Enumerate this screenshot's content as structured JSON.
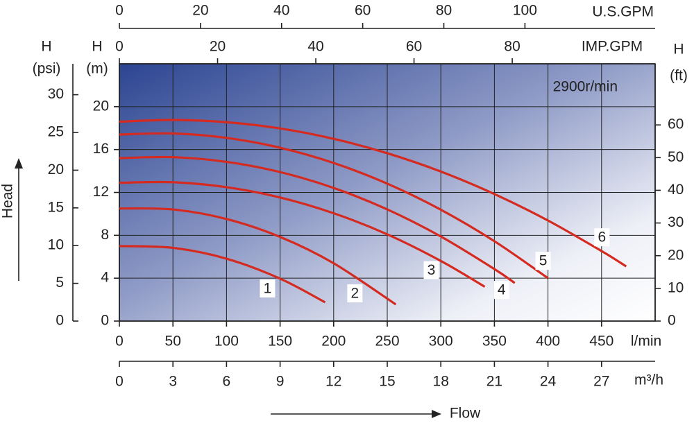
{
  "chart_data": {
    "type": "line",
    "annotation": "2900r/min",
    "x_axis_title": "Flow",
    "y_axis_title": "Head",
    "xlim": [
      0,
      500
    ],
    "xticks": [
      0,
      50,
      100,
      150,
      200,
      250,
      300,
      350,
      400,
      450
    ],
    "x_unit": "l/min",
    "x2": {
      "unit": "m³/h",
      "lim": [
        0,
        30
      ],
      "ticks": [
        0,
        3,
        6,
        9,
        12,
        15,
        18,
        21,
        24,
        27
      ]
    },
    "x_top": {
      "unit": "U.S.GPM",
      "lim": [
        0,
        132.1
      ],
      "ticks": [
        0,
        20,
        40,
        60,
        80,
        100
      ]
    },
    "x_top2": {
      "unit": "IMP.GPM",
      "lim": [
        0,
        109.1
      ],
      "ticks": [
        0,
        20,
        40,
        60,
        80
      ]
    },
    "ylim": [
      0,
      24
    ],
    "yticks": [
      0,
      4,
      8,
      12,
      16,
      20
    ],
    "y_label": [
      "H",
      "(m)"
    ],
    "y_psi": {
      "label": [
        "H",
        "(psi)"
      ],
      "lim": [
        0,
        34.1
      ],
      "ticks": [
        0,
        5,
        10,
        15,
        20,
        25,
        30
      ]
    },
    "y_ft": {
      "label": [
        "H",
        "(ft)"
      ],
      "lim": [
        0,
        78.7
      ],
      "ticks": [
        0,
        10,
        20,
        30,
        40,
        50,
        60
      ]
    },
    "grid": true,
    "series": [
      {
        "name": "1",
        "color": "#d42a20",
        "x": [
          0,
          50,
          100,
          150,
          192
        ],
        "values": [
          7.0,
          6.83,
          5.82,
          3.96,
          1.75
        ]
      },
      {
        "name": "2",
        "color": "#d42a20",
        "x": [
          0,
          50,
          100,
          150,
          200,
          258
        ],
        "values": [
          10.5,
          10.41,
          9.52,
          7.85,
          5.39,
          1.55
        ]
      },
      {
        "name": "3",
        "color": "#d42a20",
        "x": [
          0,
          50,
          100,
          150,
          200,
          250,
          300,
          341
        ],
        "values": [
          12.9,
          12.95,
          12.49,
          11.53,
          10.06,
          8.09,
          5.61,
          3.2
        ]
      },
      {
        "name": "4",
        "color": "#d42a20",
        "x": [
          0,
          50,
          100,
          150,
          200,
          250,
          300,
          350,
          369
        ],
        "values": [
          15.2,
          15.29,
          14.85,
          13.9,
          12.42,
          10.42,
          7.89,
          4.85,
          3.55
        ]
      },
      {
        "name": "5",
        "color": "#d42a20",
        "x": [
          0,
          50,
          100,
          150,
          200,
          250,
          300,
          350,
          400
        ],
        "values": [
          17.4,
          17.5,
          17.09,
          16.17,
          14.75,
          12.82,
          10.39,
          7.45,
          4.0
        ]
      },
      {
        "name": "6",
        "color": "#d42a20",
        "x": [
          0,
          50,
          100,
          150,
          200,
          250,
          300,
          350,
          400,
          450,
          473
        ],
        "values": [
          18.6,
          18.76,
          18.55,
          17.97,
          17.0,
          15.66,
          13.95,
          11.85,
          9.38,
          6.53,
          5.1
        ]
      }
    ]
  }
}
